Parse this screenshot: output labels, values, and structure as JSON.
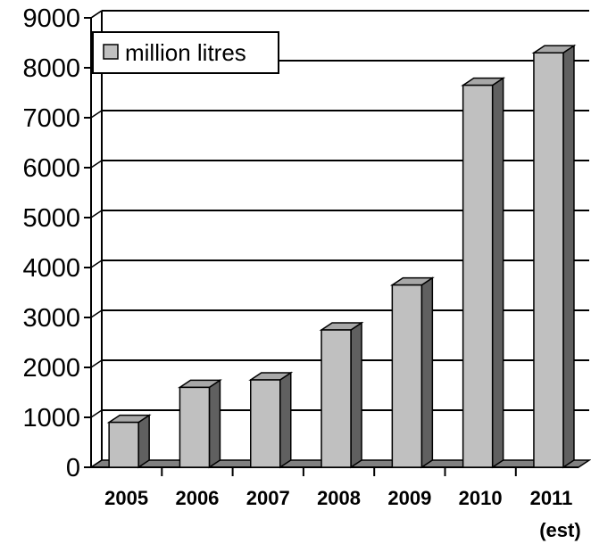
{
  "chart_data": {
    "type": "bar",
    "categories": [
      {
        "line1": "2005",
        "line2": ""
      },
      {
        "line1": "2006",
        "line2": ""
      },
      {
        "line1": "2007",
        "line2": ""
      },
      {
        "line1": "2008",
        "line2": ""
      },
      {
        "line1": "2009",
        "line2": ""
      },
      {
        "line1": "2010",
        "line2": ""
      },
      {
        "line1": "2011",
        "line2": "(est)"
      }
    ],
    "series": [
      {
        "name": "million litres",
        "values": [
          900,
          1600,
          1750,
          2750,
          3650,
          7650,
          8300
        ]
      }
    ],
    "ylim": [
      0,
      9000
    ],
    "yticks": [
      "0",
      "1000",
      "2000",
      "3000",
      "4000",
      "5000",
      "6000",
      "7000",
      "8000",
      "9000"
    ],
    "grid": true,
    "legend": "top-left",
    "colors": {
      "bar_front": "#c0c0c0",
      "bar_top": "#a8a8a8",
      "bar_side": "#606060",
      "floor": "#808080",
      "grid": "#000000"
    }
  }
}
